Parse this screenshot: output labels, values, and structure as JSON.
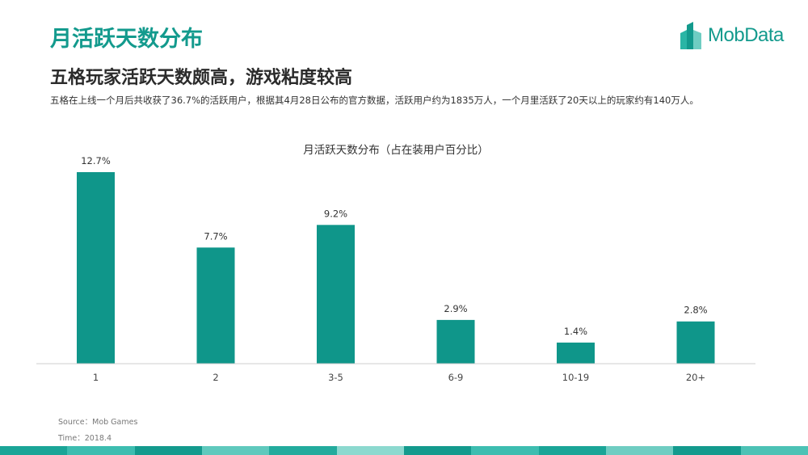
{
  "header": {
    "title": "月活跃天数分布",
    "subtitle": "五格玩家活跃天数颇高，游戏粘度较高",
    "description": "五格在上线一个月后共收获了36.7%的活跃用户，根据其4月28日公布的官方数据，活跃用户约为1835万人，一个月里活跃了20天以上的玩家约有140万人。"
  },
  "logo": {
    "text": "MobData",
    "icon": "building-logo-icon"
  },
  "colors": {
    "accent": "#139a8d",
    "bar": "#0f968a",
    "axis": "#cfcfcf"
  },
  "chart_data": {
    "type": "bar",
    "title": "月活跃天数分布（占在装用户百分比）",
    "xlabel": "",
    "ylabel": "",
    "categories": [
      "1",
      "2",
      "3-5",
      "6-9",
      "10-19",
      "20+"
    ],
    "values": [
      12.7,
      7.7,
      9.2,
      2.9,
      1.4,
      2.8
    ],
    "labels": [
      "12.7%",
      "7.7%",
      "9.2%",
      "2.9%",
      "1.4%",
      "2.8%"
    ],
    "ylim": [
      0,
      12.7
    ],
    "grid": false,
    "legend": "none"
  },
  "footer": {
    "source": "Source：Mob Games",
    "time": "Time：2018.4"
  }
}
